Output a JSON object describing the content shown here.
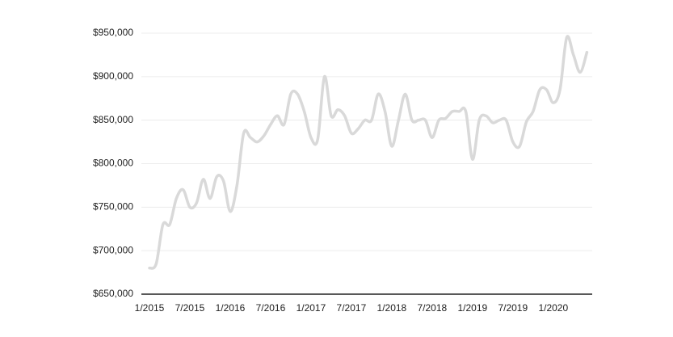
{
  "chart_data": {
    "type": "line",
    "categories": [
      "1/2015",
      null,
      null,
      null,
      null,
      null,
      "7/2015",
      null,
      null,
      null,
      null,
      null,
      "1/2016",
      null,
      null,
      null,
      null,
      null,
      "7/2016",
      null,
      null,
      null,
      null,
      null,
      "1/2017",
      null,
      null,
      null,
      null,
      null,
      "7/2017",
      null,
      null,
      null,
      null,
      null,
      "1/2018",
      null,
      null,
      null,
      null,
      null,
      "7/2018",
      null,
      null,
      null,
      null,
      null,
      "1/2019",
      null,
      null,
      null,
      null,
      null,
      "7/2019",
      null,
      null,
      null,
      null,
      null,
      "1/2020",
      null,
      null,
      null,
      null,
      null
    ],
    "series": [
      {
        "color": "#d9d9d9",
        "values": [
          680000,
          685000,
          730000,
          730000,
          760000,
          770000,
          750000,
          755000,
          782000,
          760000,
          785000,
          780000,
          745000,
          775000,
          835000,
          830000,
          825000,
          832000,
          845000,
          855000,
          845000,
          880000,
          880000,
          860000,
          830000,
          828000,
          900000,
          855000,
          862000,
          855000,
          835000,
          840000,
          850000,
          850000,
          880000,
          860000,
          820000,
          850000,
          880000,
          850000,
          850000,
          850000,
          830000,
          850000,
          852000,
          860000,
          860000,
          860000,
          805000,
          850000,
          855000,
          847000,
          850000,
          850000,
          825000,
          820000,
          848000,
          860000,
          885000,
          885000,
          870000,
          885000,
          945000,
          925000,
          905000,
          928000
        ]
      }
    ],
    "ylim": [
      650000,
      950000
    ],
    "yticks": [
      {
        "value": 650000,
        "label": "$650,000"
      },
      {
        "value": 700000,
        "label": "$700,000"
      },
      {
        "value": 750000,
        "label": "$750,000"
      },
      {
        "value": 800000,
        "label": "$800,000"
      },
      {
        "value": 850000,
        "label": "$850,000"
      },
      {
        "value": 900000,
        "label": "$900,000"
      },
      {
        "value": 950000,
        "label": "$950,000"
      }
    ],
    "grid": true
  }
}
